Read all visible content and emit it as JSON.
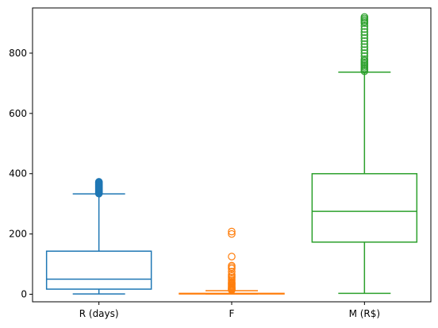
{
  "chart_data": {
    "type": "box",
    "title": "",
    "xlabel": "",
    "ylabel": "",
    "ylim": [
      -25,
      950
    ],
    "yticks": [
      0,
      200,
      400,
      600,
      800
    ],
    "categories": [
      "R (days)",
      "F",
      "M (R$)"
    ],
    "grid": false,
    "series": [
      {
        "name": "R (days)",
        "color": "#1f77b4",
        "whisker_low": 1,
        "q1": 17,
        "median": 50,
        "q3": 143,
        "whisker_high": 333,
        "outliers": [
          334,
          336,
          338,
          340,
          342,
          344,
          346,
          348,
          350,
          352,
          354,
          356,
          358,
          360,
          362,
          364,
          366,
          368,
          370,
          372,
          373
        ]
      },
      {
        "name": "F",
        "color": "#ff7f0e",
        "whisker_low": 1,
        "q1": 1,
        "median": 2,
        "q3": 3,
        "whisker_high": 12,
        "outliers": [
          14,
          16,
          18,
          20,
          22,
          25,
          28,
          31,
          34,
          37,
          40,
          45,
          50,
          55,
          60,
          65,
          75,
          85,
          90,
          95,
          125,
          200,
          208
        ]
      },
      {
        "name": "M (R$)",
        "color": "#2ca02c",
        "whisker_low": 3,
        "q1": 173,
        "median": 275,
        "q3": 400,
        "whisker_high": 737,
        "outliers": [
          740,
          745,
          750,
          755,
          760,
          765,
          770,
          775,
          780,
          790,
          800,
          810,
          820,
          830,
          840,
          850,
          860,
          870,
          880,
          890,
          900,
          905,
          910,
          915,
          920
        ]
      }
    ]
  }
}
